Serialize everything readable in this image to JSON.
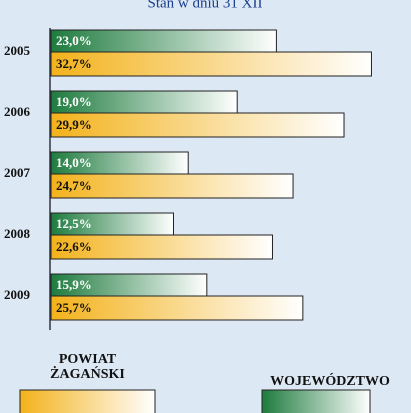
{
  "chart_data": {
    "type": "bar",
    "orientation": "horizontal",
    "title": "Stan w dniu 31 XII",
    "categories": [
      "2005",
      "2006",
      "2007",
      "2008",
      "2009"
    ],
    "series": [
      {
        "name": "WOJEWÓDZTWO",
        "color": "#1e7b3e",
        "values": [
          23.0,
          19.0,
          14.0,
          12.5,
          15.9
        ],
        "value_labels": [
          "23,0%",
          "19,0%",
          "14,0%",
          "12,5%",
          "15,9%"
        ]
      },
      {
        "name": "POWIAT ŻAGAŃSKI",
        "color": "#f3b21b",
        "values": [
          32.7,
          29.9,
          24.7,
          22.6,
          25.7
        ],
        "value_labels": [
          "32,7%",
          "29,9%",
          "24,7%",
          "22,6%",
          "25,7%"
        ]
      }
    ]
  }
}
